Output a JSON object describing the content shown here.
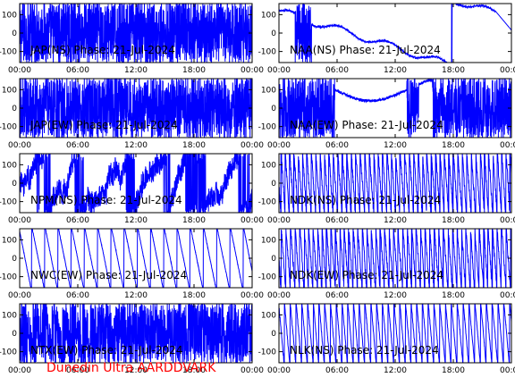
{
  "footer": "Dunedin Ultra AARDDVARK",
  "colors": {
    "trace": "#0000ff",
    "axis": "#000000",
    "footer": "#ff0000",
    "background": "#ffffff"
  },
  "chart_data": [
    {
      "type": "line",
      "title": "JAP(NS) Phase: 21-Jul-2024",
      "x": [
        "00:00",
        "06:00",
        "12:00",
        "18:00",
        "00:00"
      ],
      "yticks": [
        100,
        0,
        -100
      ],
      "ylim": [
        -160,
        160
      ],
      "pattern": "dense"
    },
    {
      "type": "line",
      "title": "NAA(NS) Phase: 21-Jul-2024",
      "x": [
        "00:00",
        "06:00",
        "12:00",
        "18:00",
        "00:00"
      ],
      "yticks": [
        100,
        0,
        -100
      ],
      "ylim": [
        -160,
        160
      ],
      "pattern": "drift-bumps"
    },
    {
      "type": "line",
      "title": "JAP(EW) Phase: 21-Jul-2024",
      "x": [
        "00:00",
        "06:00",
        "12:00",
        "18:00",
        "00:00"
      ],
      "yticks": [
        100,
        0,
        -100
      ],
      "ylim": [
        -160,
        160
      ],
      "pattern": "dense-gaps"
    },
    {
      "type": "line",
      "title": "NAA(EW) Phase: 21-Jul-2024",
      "x": [
        "00:00",
        "06:00",
        "12:00",
        "18:00",
        "00:00"
      ],
      "yticks": [
        100,
        0,
        -100
      ],
      "ylim": [
        -160,
        160
      ],
      "pattern": "arch-dense"
    },
    {
      "type": "line",
      "title": "NPM(NS) Phase: 21-Jul-2024",
      "x": [
        "00:00",
        "06:00",
        "12:00",
        "18:00",
        "00:00"
      ],
      "yticks": [
        100,
        0,
        -100
      ],
      "ylim": [
        -160,
        160
      ],
      "pattern": "noisy-wraps"
    },
    {
      "type": "line",
      "title": "NDK(NS) Phase: 21-Jul-2024",
      "x": [
        "00:00",
        "06:00",
        "12:00",
        "18:00",
        "00:00"
      ],
      "yticks": [
        100,
        0,
        -100
      ],
      "ylim": [
        -160,
        160
      ],
      "pattern": "fast-sawtooth"
    },
    {
      "type": "line",
      "title": "NWC(EW) Phase: 21-Jul-2024",
      "x": [
        "00:00",
        "06:00",
        "12:00",
        "18:00",
        "00:00"
      ],
      "yticks": [
        100,
        0,
        -100
      ],
      "ylim": [
        -160,
        160
      ],
      "pattern": "slow-sawtooth"
    },
    {
      "type": "line",
      "title": "NDK(EW) Phase: 21-Jul-2024",
      "x": [
        "00:00",
        "06:00",
        "12:00",
        "18:00",
        "00:00"
      ],
      "yticks": [
        100,
        0,
        -100
      ],
      "ylim": [
        -160,
        160
      ],
      "pattern": "fast-sawtooth"
    },
    {
      "type": "line",
      "title": "NTX(EW) Phase: 21-Jul-2024",
      "x": [
        "00:00",
        "06:00",
        "12:00",
        "18:00",
        "00:00"
      ],
      "yticks": [
        100,
        0,
        -100
      ],
      "ylim": [
        -160,
        160
      ],
      "pattern": "dense-late"
    },
    {
      "type": "line",
      "title": "NLK(NS) Phase: 21-Jul-2024",
      "x": [
        "00:00",
        "06:00",
        "12:00",
        "18:00",
        "00:00"
      ],
      "yticks": [
        100,
        0,
        -100
      ],
      "ylim": [
        -160,
        160
      ],
      "pattern": "sawtooth"
    }
  ]
}
